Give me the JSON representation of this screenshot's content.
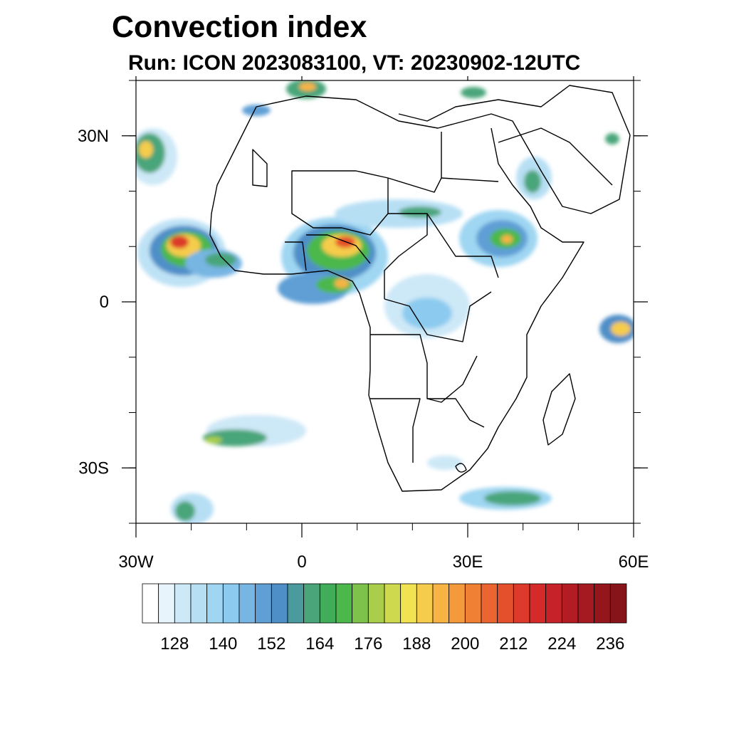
{
  "title": "Convection index",
  "subtitle": "Run: ICON 2023083100,  VT: 20230902-12UTC",
  "map": {
    "region": "Africa",
    "lon_range": [
      -30,
      60
    ],
    "lat_range": [
      -40,
      40
    ],
    "x_ticks": [
      {
        "value": -30,
        "label": "30W"
      },
      {
        "value": 0,
        "label": "0"
      },
      {
        "value": 30,
        "label": "30E"
      },
      {
        "value": 60,
        "label": "60E"
      }
    ],
    "y_ticks": [
      {
        "value": 30,
        "label": "30N"
      },
      {
        "value": 0,
        "label": "0"
      },
      {
        "value": -30,
        "label": "30S"
      }
    ]
  },
  "colorbar": {
    "levels": [
      120,
      124,
      128,
      132,
      136,
      140,
      144,
      148,
      152,
      156,
      160,
      164,
      168,
      172,
      176,
      180,
      184,
      188,
      192,
      196,
      200,
      204,
      208,
      212,
      216,
      220,
      224,
      228,
      232,
      236,
      240
    ],
    "labels": [
      "128",
      "140",
      "152",
      "164",
      "176",
      "188",
      "200",
      "212",
      "224",
      "236"
    ],
    "colors": [
      "#ffffff",
      "#e8f4fb",
      "#cde8f7",
      "#b7dff4",
      "#9fd6f2",
      "#8ccbef",
      "#77b5e3",
      "#5f9fd6",
      "#4f8fc8",
      "#4a9a9e",
      "#4aa57a",
      "#41ad5a",
      "#4cb84c",
      "#7ec24c",
      "#a8ce4c",
      "#cfd94e",
      "#f0e250",
      "#f6cc4c",
      "#f7b444",
      "#f49a3c",
      "#f08034",
      "#ea6530",
      "#e4502c",
      "#dc3a2a",
      "#d42a2a",
      "#c6222a",
      "#b41c24",
      "#a41a20",
      "#94161c",
      "#861418"
    ]
  }
}
